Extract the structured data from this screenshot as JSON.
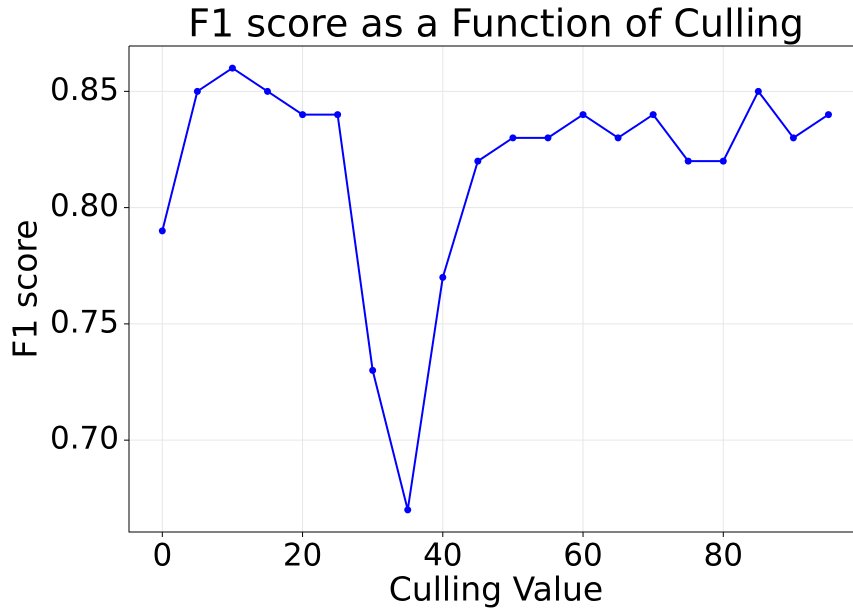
{
  "chart_data": {
    "type": "line",
    "title": "F1 score as a Function of Culling",
    "x_label": "Culling Value",
    "y_label": "F1 score",
    "x": [
      0,
      5,
      10,
      15,
      20,
      25,
      30,
      35,
      40,
      45,
      50,
      55,
      60,
      65,
      70,
      75,
      80,
      85,
      90,
      95
    ],
    "series": [
      {
        "color": "#0000ff",
        "values": [
          0.79,
          0.85,
          0.86,
          0.85,
          0.84,
          0.84,
          0.73,
          0.67,
          0.77,
          0.82,
          0.83,
          0.83,
          0.84,
          0.83,
          0.84,
          0.82,
          0.82,
          0.85,
          0.83,
          0.84
        ]
      }
    ],
    "xlim": [
      -4.75,
      98.5
    ],
    "xticks": [
      0,
      20,
      40,
      60,
      80
    ],
    "ylim": [
      0.6605,
      0.8695
    ],
    "yticks": [
      {
        "value": 0.7,
        "label": "0.70"
      },
      0.75,
      {
        "value": 0.8,
        "label": "0.80"
      },
      0.85
    ],
    "grid": true
  }
}
